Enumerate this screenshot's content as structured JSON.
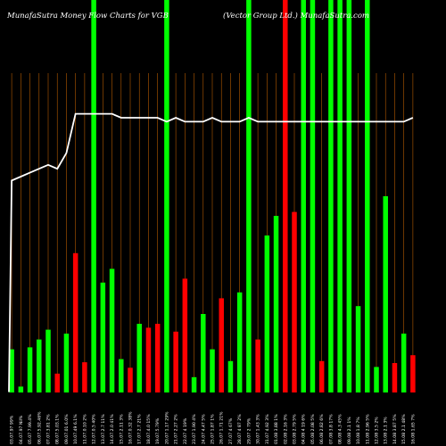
{
  "chart_data": {
    "type": "bar",
    "title_left": "MunafaSutra  Money Flow  Charts for VGB",
    "title_right": "(Vector Group Ltd.) MunafaSutra.com",
    "ylim": [
      0,
      100
    ],
    "colors": {
      "up": "#00ff00",
      "down": "#ff0000",
      "price_line": "#ffffff",
      "grid": "#b35a00",
      "background": "#000000"
    },
    "categories": [
      "03.07.97 99%",
      "04.07.97 Nil%",
      "05.07 7.99.4%",
      "06.07.5.92.46%",
      "07.07.3.81 2%",
      "08.07.5.03.1%",
      "09.07.01 6.0%",
      "10.07.49 6.1%",
      "11.07.0.10 2%",
      "12.07.0.5 40%",
      "13.07.2.7 11%",
      "14.07.2.0 41%",
      "15.07.2.11 3%",
      "16.07.0.32 38%",
      "17.07.2.7 21%",
      "18.07.4.0 15%",
      "19.07.5.79%",
      "20.07 1.17 29%",
      "21.07 2.27 2%",
      "22.07 4 19%",
      "23.07 1.90 4%",
      "24.07 4.47 5%",
      "25.07 1.87 1%",
      "26.07 1.71 21%",
      "27.07 4 67%",
      "28.07 4 87 2%",
      "29.07 2 79%",
      "30.07 1.43 3%",
      "31.07 4.92 3%",
      "01.08 3.88 1%",
      "02.08 2.16 3%",
      "03.08 2.79 5%",
      "04.08 4 19 6%",
      "05.08 2.08 5%",
      "06.08 2.82 6%",
      "07.08 3.8 17%",
      "08.08 4.3 45%",
      "09.08 2.1 1%",
      "10.08 1.8 7%",
      "11.08 2.96 5%",
      "12.08 3.5 2%",
      "13.08 2.1 3%",
      "14.08 3.87 5%",
      "15.08 2.1 48%",
      "16.08 1.65 7%"
    ],
    "series": [
      {
        "values": [
          11,
          1.5,
          11.5,
          13.5,
          16,
          4.8,
          15,
          35.5,
          7.7,
          100,
          28,
          31.5,
          8.5,
          6.3,
          17.5,
          16.5,
          17.5,
          100,
          15.5,
          29,
          3.9,
          20,
          11,
          24,
          8,
          25.5,
          100,
          13.5,
          40,
          45,
          100,
          46,
          100,
          100,
          8,
          100,
          100,
          100,
          22,
          100,
          6.5,
          50,
          7.5,
          15,
          9.5
        ],
        "directions": [
          "up",
          "up",
          "up",
          "up",
          "up",
          "down",
          "up",
          "down",
          "down",
          "up",
          "up",
          "up",
          "up",
          "down",
          "up",
          "down",
          "down",
          "up",
          "down",
          "down",
          "up",
          "up",
          "up",
          "down",
          "up",
          "up",
          "up",
          "down",
          "up",
          "up",
          "down",
          "down",
          "up",
          "up",
          "down",
          "up",
          "up",
          "up",
          "up",
          "up",
          "up",
          "up",
          "down",
          "up",
          "down"
        ]
      }
    ],
    "price_line": [
      54,
      55,
      56,
      57,
      58,
      57,
      61,
      71,
      71,
      71,
      71,
      71,
      70,
      70,
      70,
      70,
      70,
      69,
      70,
      69,
      69,
      69,
      70,
      69,
      69,
      69,
      70,
      69,
      69,
      69,
      69,
      69,
      69,
      69,
      69,
      69,
      69,
      69,
      69,
      69,
      69,
      69,
      69,
      69,
      70
    ],
    "grid": true
  }
}
